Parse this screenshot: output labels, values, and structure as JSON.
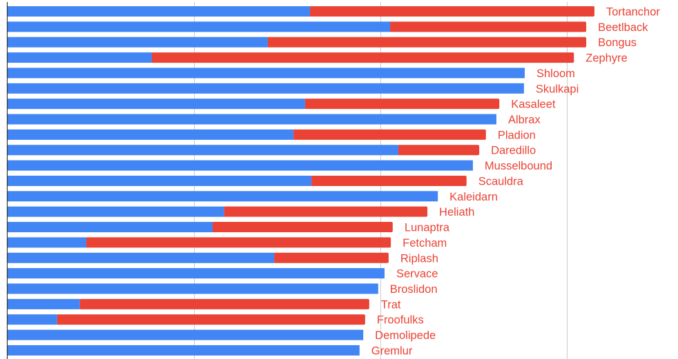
{
  "chart_data": {
    "type": "bar",
    "orientation": "horizontal",
    "stacked": true,
    "title": "",
    "xlabel": "",
    "ylabel": "",
    "xlim": [
      0,
      1750
    ],
    "grid": true,
    "gridlines": [
      500,
      1000,
      1500
    ],
    "legend": "none",
    "label_position": "end-of-bar",
    "colors": {
      "series_blue": "#4285F4",
      "series_red": "#EA4335",
      "label": "#EA4335",
      "grid": "#cccccc",
      "axis": "#333333"
    },
    "categories": [
      "Tortanchor",
      "Beetlback",
      "Bongus",
      "Zephyre",
      "Shloom",
      "Skulkapi",
      "Kasaleet",
      "Albrax",
      "Pladion",
      "Daredillo",
      "Musselbound",
      "Scauldra",
      "Kaleidarn",
      "Heliath",
      "Lunaptra",
      "Fetcham",
      "Riplash",
      "Servace",
      "Broslidon",
      "Trat",
      "Froofulks",
      "Demolipede",
      "Gremlur"
    ],
    "series": [
      {
        "name": "blue",
        "color": "#4285F4",
        "values": [
          811,
          1026,
          698,
          387,
          1387,
          1385,
          798,
          1311,
          767,
          1048,
          1248,
          815,
          1154,
          581,
          550,
          211,
          715,
          1011,
          994,
          194,
          133,
          954,
          944
        ]
      },
      {
        "name": "red",
        "color": "#EA4335",
        "values": [
          763,
          526,
          854,
          1132,
          0,
          0,
          521,
          0,
          516,
          217,
          0,
          416,
          0,
          545,
          483,
          817,
          307,
          0,
          0,
          776,
          826,
          0,
          0
        ]
      }
    ]
  }
}
